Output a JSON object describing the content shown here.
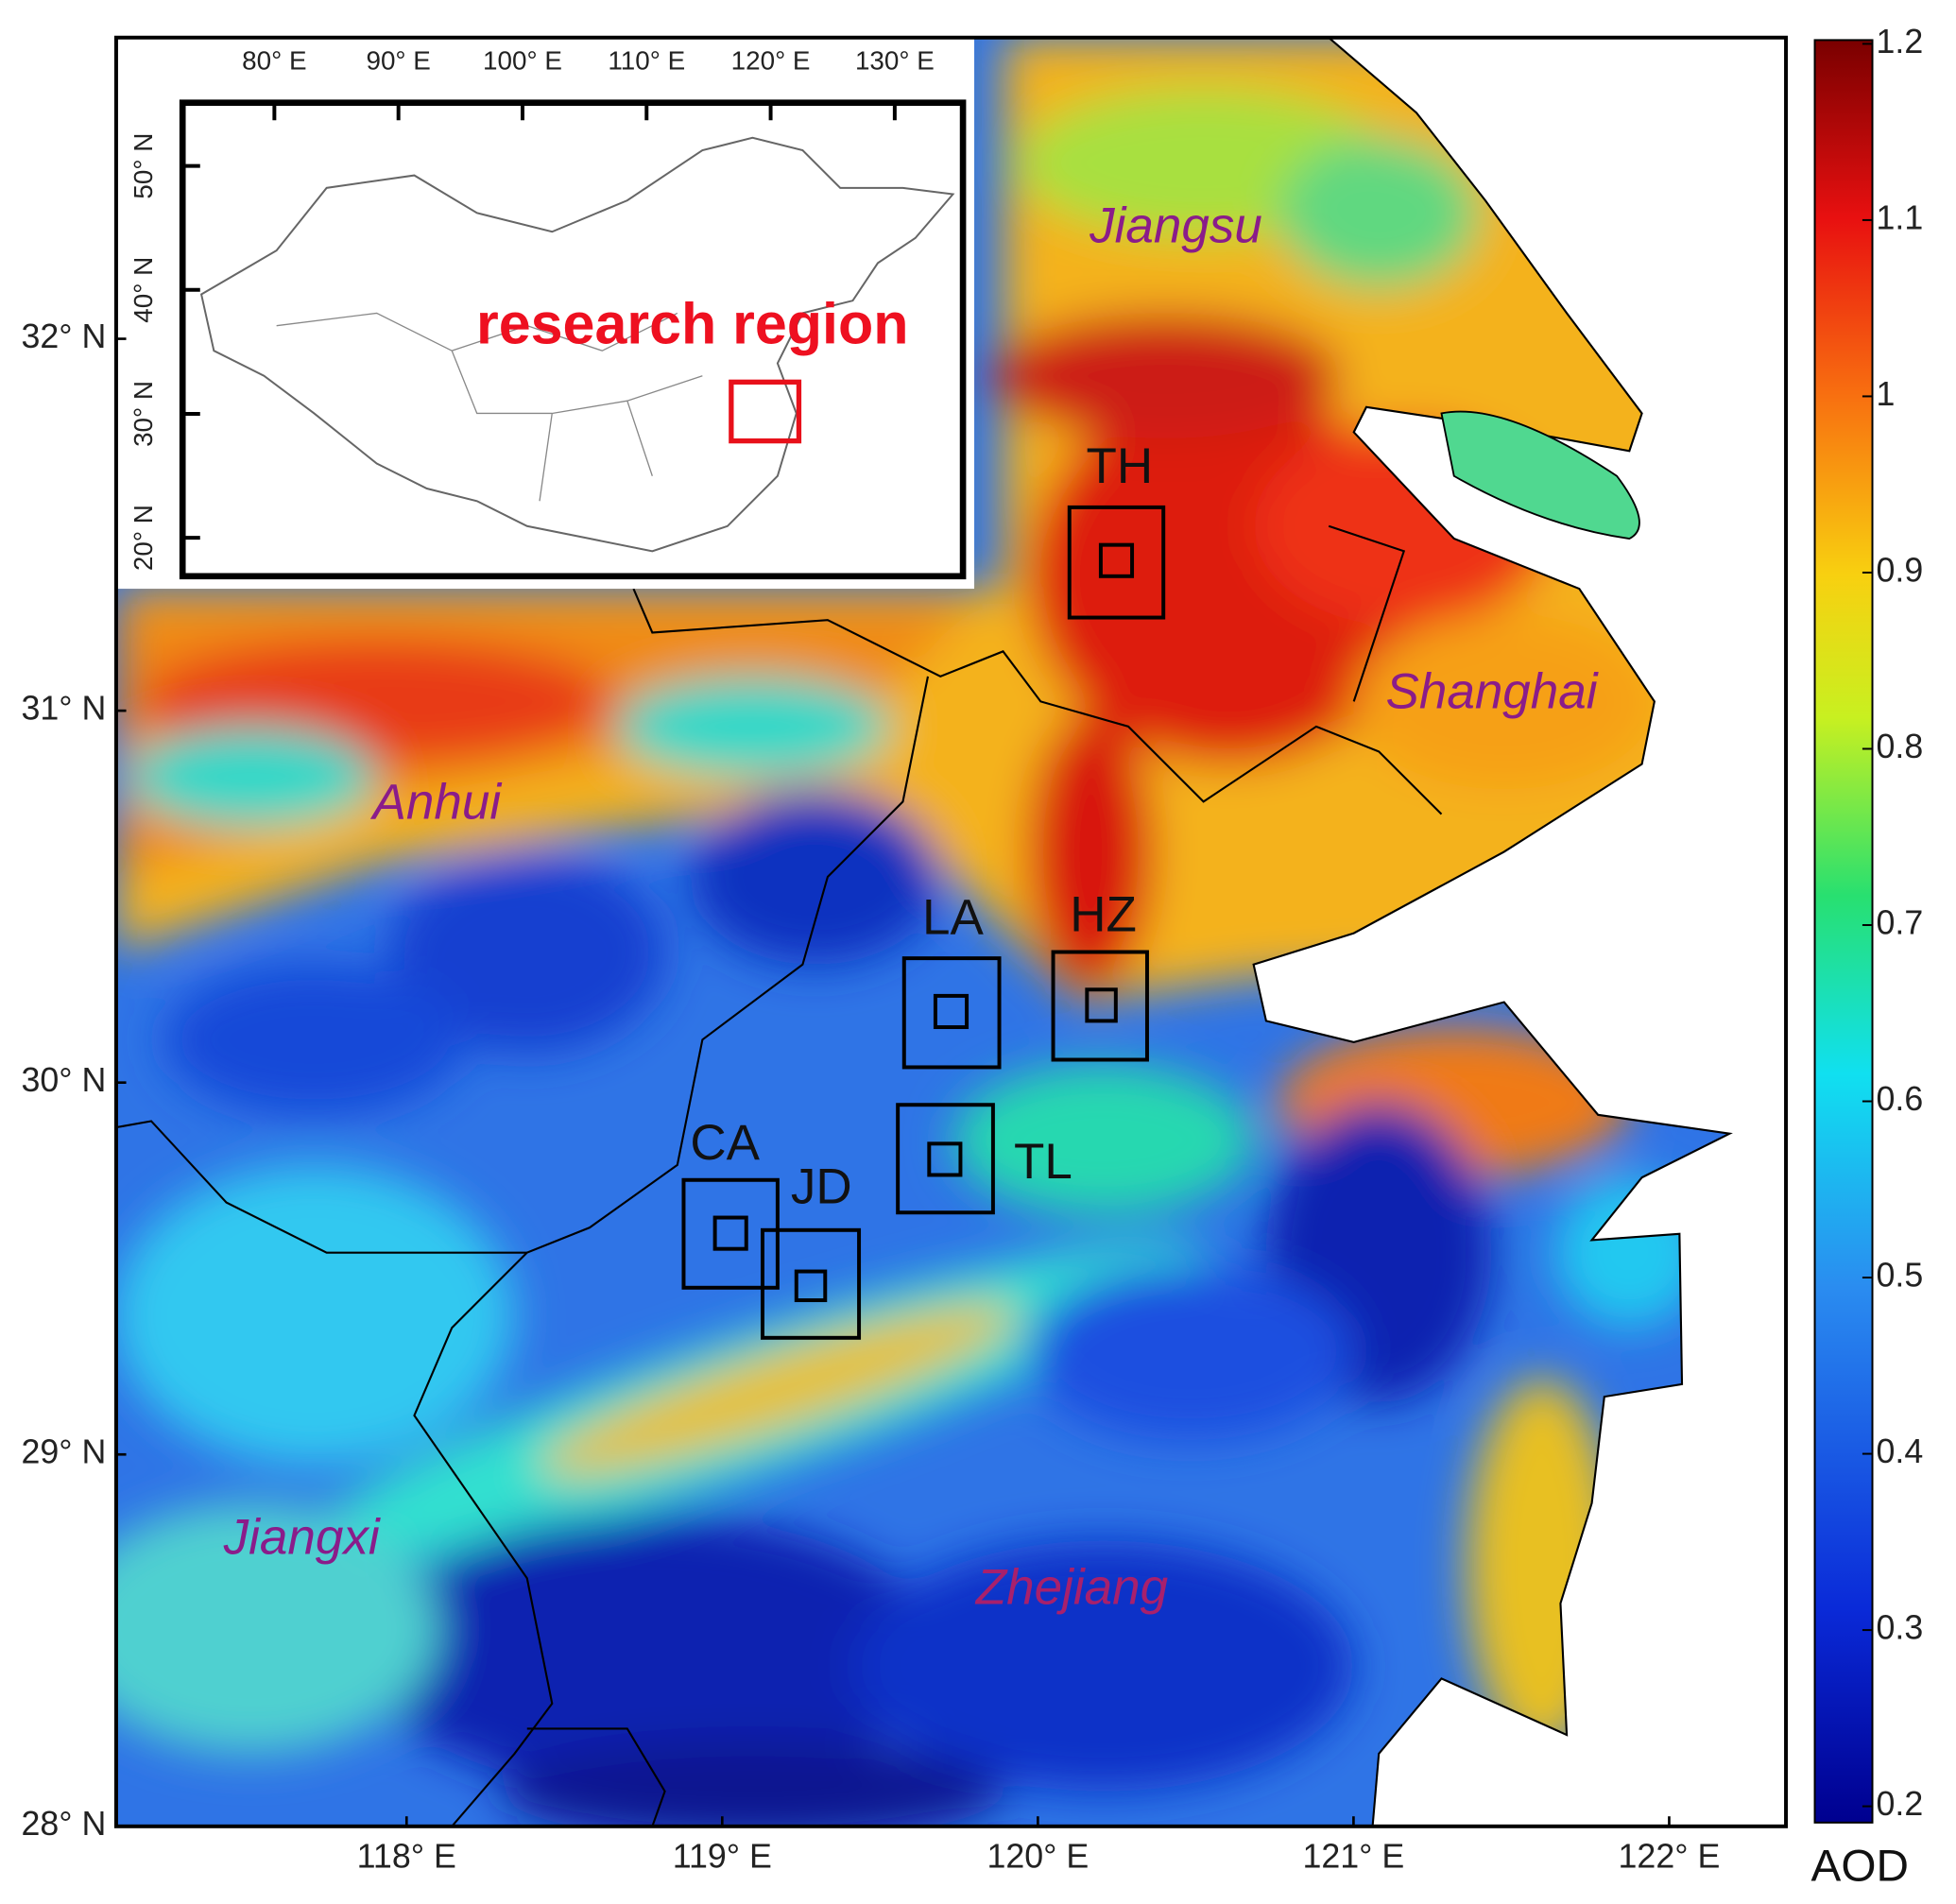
{
  "map": {
    "xlim": [
      117.08,
      122.37
    ],
    "ylim": [
      28,
      32.81
    ],
    "lon_ticks": [
      {
        "value": 118,
        "label": "118° E"
      },
      {
        "value": 119,
        "label": "119° E"
      },
      {
        "value": 120,
        "label": "120° E"
      },
      {
        "value": 121,
        "label": "121° E"
      },
      {
        "value": 122,
        "label": "122° E"
      }
    ],
    "lat_ticks": [
      {
        "value": 28,
        "label": "28° N"
      },
      {
        "value": 29,
        "label": "29° N"
      },
      {
        "value": 30,
        "label": "30° N"
      },
      {
        "value": 31,
        "label": "31° N"
      },
      {
        "value": 32,
        "label": "32° N"
      }
    ],
    "regions": [
      "Jiangsu",
      "Shanghai",
      "Anhui",
      "Jiangxi",
      "Zhejiang"
    ],
    "sites": [
      "TH",
      "HZ",
      "LA",
      "TL",
      "CA",
      "JD"
    ]
  },
  "inset": {
    "label": "research region",
    "xlim": [
      72.6,
      135.5
    ],
    "ylim": [
      16.9,
      55.1
    ],
    "lon_ticks": [
      {
        "value": 80,
        "label": "80° E"
      },
      {
        "value": 90,
        "label": "90° E"
      },
      {
        "value": 100,
        "label": "100° E"
      },
      {
        "value": 110,
        "label": "110° E"
      },
      {
        "value": 120,
        "label": "120° E"
      },
      {
        "value": 130,
        "label": "130° E"
      }
    ],
    "lat_ticks": [
      {
        "value": 20,
        "label": "20° N"
      },
      {
        "value": 30,
        "label": "30° N"
      },
      {
        "value": 40,
        "label": "40° N"
      },
      {
        "value": 50,
        "label": "50° N"
      }
    ]
  },
  "colorbar": {
    "label": "AOD",
    "range": [
      0.2,
      1.2
    ],
    "ticks": [
      0.2,
      0.3,
      0.4,
      0.5,
      0.6,
      0.7,
      0.8,
      0.9,
      1,
      1.1,
      1.2
    ]
  }
}
